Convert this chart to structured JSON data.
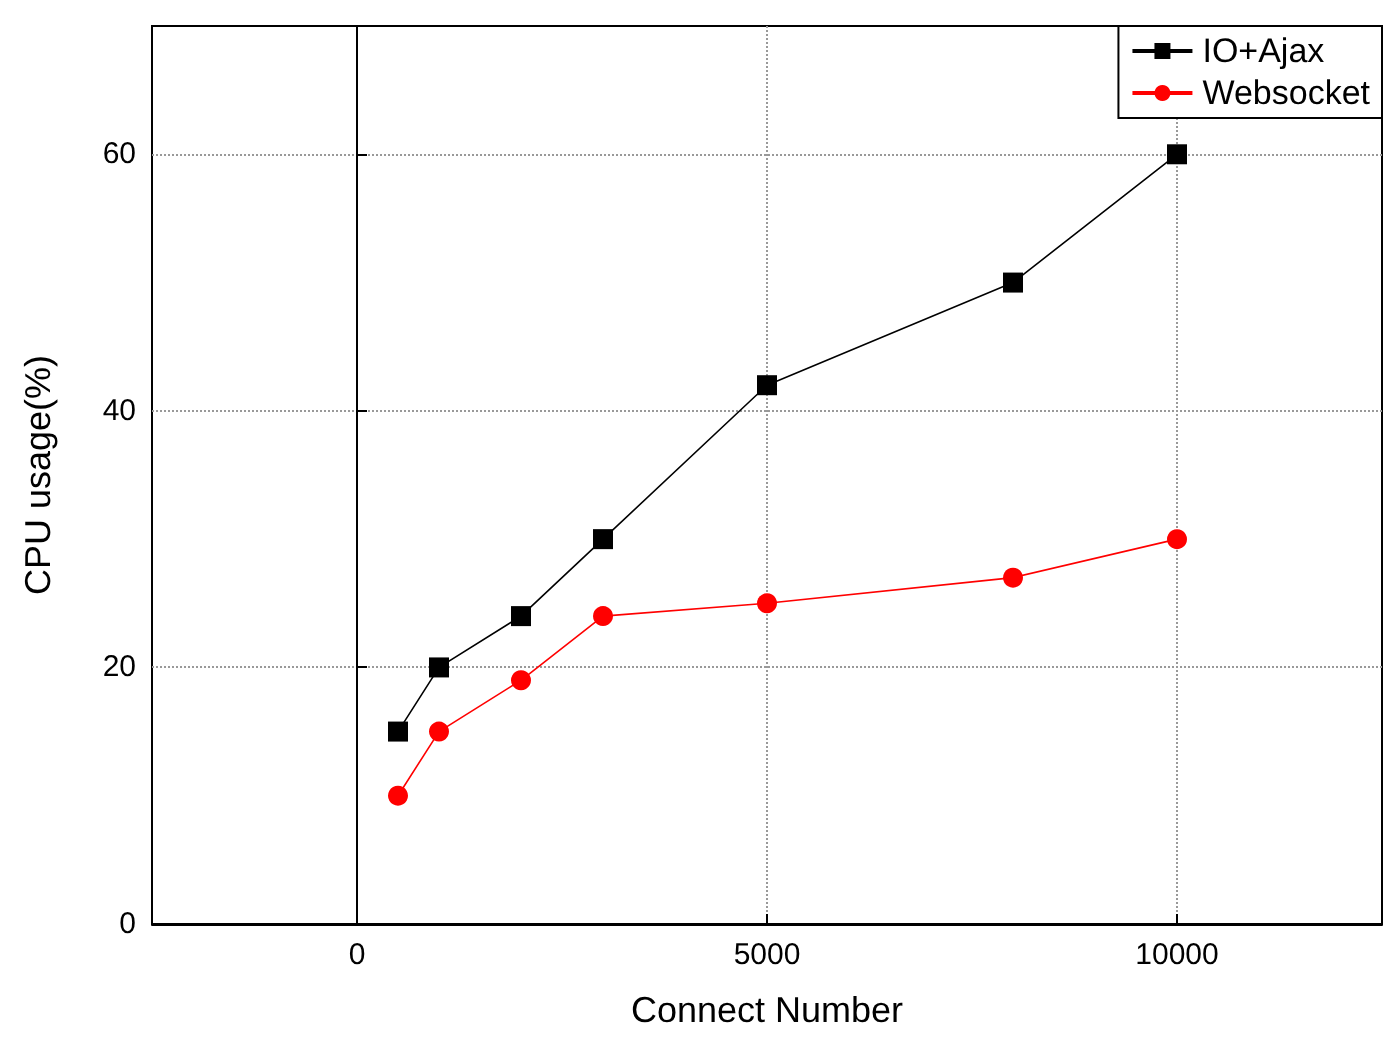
{
  "chart_data": {
    "type": "line",
    "xlabel": "Connect Number",
    "ylabel": "CPU usage(%)",
    "x": [
      500,
      1000,
      2000,
      3000,
      5000,
      8000,
      10000
    ],
    "series": [
      {
        "name": "IO+Ajax",
        "color": "#000000",
        "marker": "square",
        "values": [
          15,
          20,
          24,
          30,
          42,
          50,
          60
        ]
      },
      {
        "name": "Websocket",
        "color": "#ff0000",
        "marker": "circle",
        "values": [
          10,
          15,
          19,
          24,
          25,
          27,
          30
        ]
      }
    ],
    "xlim": [
      -2500,
      12500
    ],
    "xticks": [
      0,
      5000,
      10000
    ],
    "ylim": [
      0,
      70
    ],
    "yticks": [
      0,
      20,
      40,
      60
    ],
    "grid": true,
    "legend": "top right",
    "line_style": "solid"
  }
}
